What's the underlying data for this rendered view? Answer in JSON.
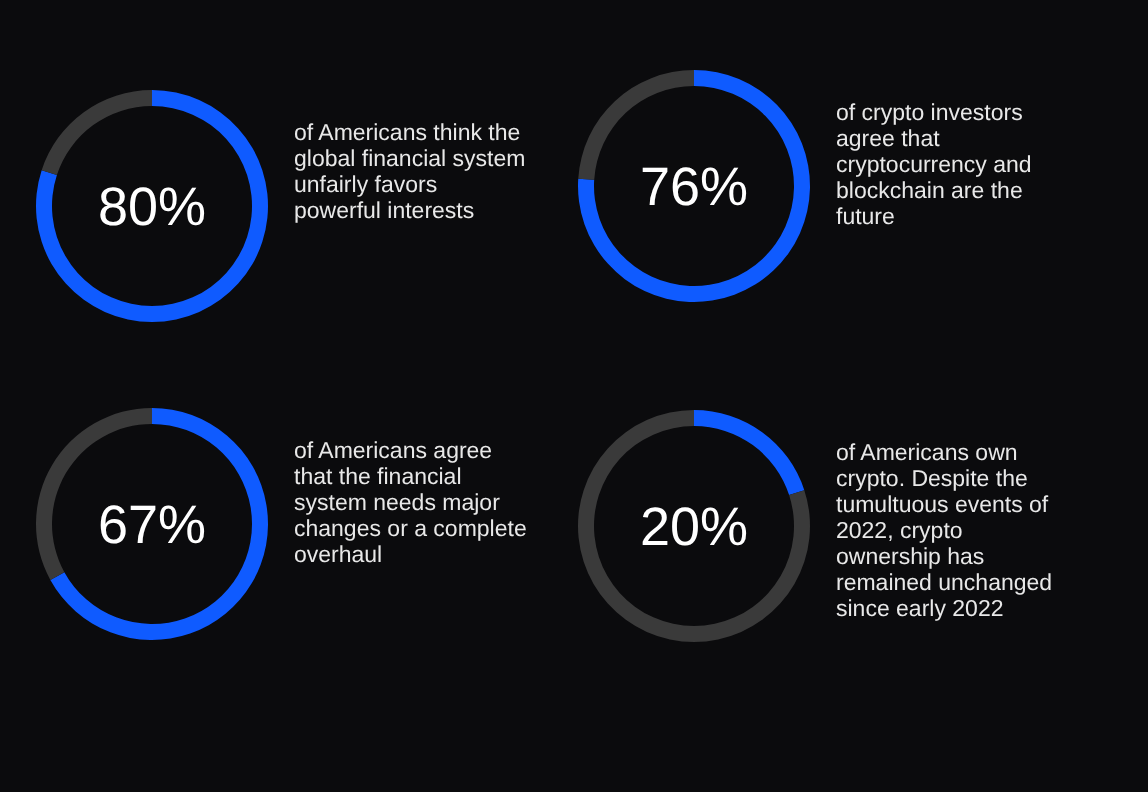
{
  "chart_data": [
    {
      "type": "donut",
      "categories": [
        null,
        null
      ],
      "values": [
        80,
        20
      ],
      "colors": [
        "#0f5bff",
        "#3a3a3a"
      ],
      "title": "80%",
      "annotations": [
        "of Americans think the global financial system unfairly favors powerful interests"
      ]
    },
    {
      "type": "donut",
      "categories": [
        null,
        null
      ],
      "values": [
        76,
        24
      ],
      "colors": [
        "#0f5bff",
        "#3a3a3a"
      ],
      "title": "76%",
      "annotations": [
        "of crypto investors agree that cryptocurrency and blockchain are the future"
      ]
    },
    {
      "type": "donut",
      "categories": [
        null,
        null
      ],
      "values": [
        67,
        33
      ],
      "colors": [
        "#0f5bff",
        "#3a3a3a"
      ],
      "title": "67%",
      "annotations": [
        "of Americans agree that the financial system needs major changes or a complete overhaul"
      ]
    },
    {
      "type": "donut",
      "categories": [
        null,
        null
      ],
      "values": [
        20,
        80
      ],
      "colors": [
        "#0f5bff",
        "#3a3a3a"
      ],
      "title": "20%",
      "annotations": [
        "of Americans own crypto. Despite the tumultuous events of 2022, crypto ownership has remained unchanged since early 2022"
      ]
    }
  ]
}
